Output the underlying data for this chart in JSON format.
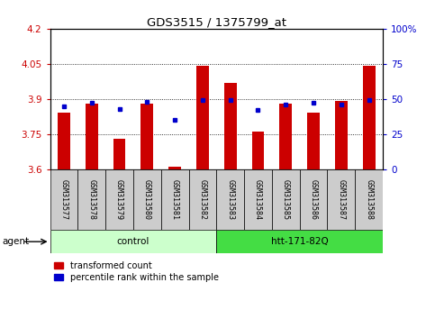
{
  "title": "GDS3515 / 1375799_at",
  "samples": [
    "GSM313577",
    "GSM313578",
    "GSM313579",
    "GSM313580",
    "GSM313581",
    "GSM313582",
    "GSM313583",
    "GSM313584",
    "GSM313585",
    "GSM313586",
    "GSM313587",
    "GSM313588"
  ],
  "transformed_count": [
    3.84,
    3.88,
    3.73,
    3.88,
    3.61,
    4.04,
    3.97,
    3.76,
    3.88,
    3.84,
    3.89,
    4.04
  ],
  "percentile_rank": [
    45,
    47,
    43,
    48,
    35,
    49,
    49,
    42,
    46,
    47,
    46,
    49
  ],
  "y_min": 3.6,
  "y_max": 4.2,
  "y_ticks_left": [
    3.6,
    3.75,
    3.9,
    4.05,
    4.2
  ],
  "y_ticks_right_vals": [
    0,
    25,
    50,
    75,
    100
  ],
  "y_ticks_right_labels": [
    "0",
    "25",
    "50",
    "75",
    "100%"
  ],
  "control_label": "control",
  "htt_label": "htt-171-82Q",
  "agent_label": "agent",
  "bar_color": "#CC0000",
  "dot_color": "#0000CC",
  "axis_label_left_color": "#CC0000",
  "axis_label_right_color": "#0000CC",
  "control_color": "#CCFFCC",
  "htt_color": "#44DD44",
  "sample_box_color": "#CCCCCC",
  "legend_items": [
    {
      "label": "transformed count",
      "color": "#CC0000"
    },
    {
      "label": "percentile rank within the sample",
      "color": "#0000CC"
    }
  ],
  "bar_width": 0.45
}
